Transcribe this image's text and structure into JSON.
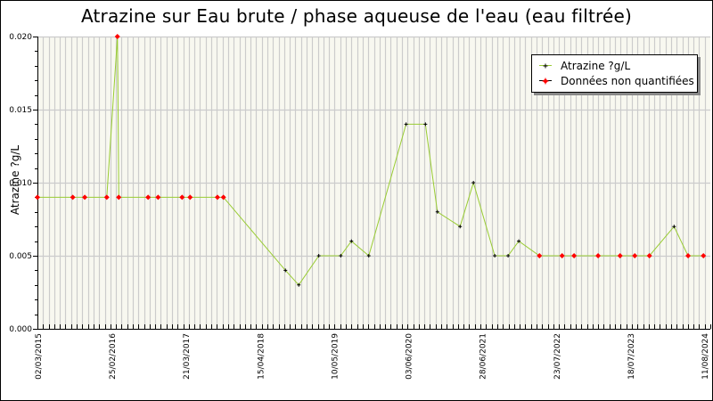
{
  "header": {
    "title": "Atrazine sur Eau brute / phase aqueuse de l'eau (eau filtrée)"
  },
  "colors": {
    "line": "#99cc33",
    "quantified_marker": "#000000",
    "non_quantified_marker": "#ff0000",
    "plot_background": "#f8f8f0",
    "grid": "#cccccc"
  },
  "legend": {
    "items": [
      {
        "label": "Atrazine ?g/L",
        "marker": "black-cross"
      },
      {
        "label": "Données non quantifiées",
        "marker": "red-diamond"
      }
    ]
  },
  "chart_data": {
    "type": "line",
    "title": "Atrazine sur Eau brute / phase aqueuse de l'eau (eau filtrée)",
    "xlabel": "",
    "ylabel": "Atrazine ?g/L",
    "ylim": [
      0.0,
      0.02
    ],
    "yticks": [
      "0.000",
      "0.005",
      "0.010",
      "0.015",
      "0.020"
    ],
    "xticks": [
      "02/03/2015",
      "25/02/2016",
      "21/03/2017",
      "15/04/2018",
      "10/05/2019",
      "03/06/2020",
      "28/06/2021",
      "23/07/2022",
      "18/07/2023",
      "11/08/2024"
    ],
    "grid": true,
    "legend_position": "top-right",
    "series": [
      {
        "name": "Atrazine ?g/L",
        "points": [
          {
            "x_frac": 0.0,
            "y": 0.009,
            "quantified": false
          },
          {
            "x_frac": 0.053,
            "y": 0.009,
            "quantified": false
          },
          {
            "x_frac": 0.071,
            "y": 0.009,
            "quantified": false
          },
          {
            "x_frac": 0.104,
            "y": 0.009,
            "quantified": false
          },
          {
            "x_frac": 0.12,
            "y": 0.02,
            "quantified": false
          },
          {
            "x_frac": 0.122,
            "y": 0.009,
            "quantified": false
          },
          {
            "x_frac": 0.166,
            "y": 0.009,
            "quantified": false
          },
          {
            "x_frac": 0.181,
            "y": 0.009,
            "quantified": false
          },
          {
            "x_frac": 0.217,
            "y": 0.009,
            "quantified": false
          },
          {
            "x_frac": 0.229,
            "y": 0.009,
            "quantified": false
          },
          {
            "x_frac": 0.27,
            "y": 0.009,
            "quantified": false
          },
          {
            "x_frac": 0.279,
            "y": 0.009,
            "quantified": false
          },
          {
            "x_frac": 0.372,
            "y": 0.004,
            "quantified": true
          },
          {
            "x_frac": 0.392,
            "y": 0.003,
            "quantified": true
          },
          {
            "x_frac": 0.422,
            "y": 0.005,
            "quantified": true
          },
          {
            "x_frac": 0.455,
            "y": 0.005,
            "quantified": true
          },
          {
            "x_frac": 0.471,
            "y": 0.006,
            "quantified": true
          },
          {
            "x_frac": 0.497,
            "y": 0.005,
            "quantified": true
          },
          {
            "x_frac": 0.553,
            "y": 0.014,
            "quantified": true
          },
          {
            "x_frac": 0.582,
            "y": 0.014,
            "quantified": true
          },
          {
            "x_frac": 0.6,
            "y": 0.008,
            "quantified": true
          },
          {
            "x_frac": 0.634,
            "y": 0.007,
            "quantified": true
          },
          {
            "x_frac": 0.654,
            "y": 0.01,
            "quantified": true
          },
          {
            "x_frac": 0.686,
            "y": 0.005,
            "quantified": true
          },
          {
            "x_frac": 0.706,
            "y": 0.005,
            "quantified": true
          },
          {
            "x_frac": 0.722,
            "y": 0.006,
            "quantified": true
          },
          {
            "x_frac": 0.753,
            "y": 0.005,
            "quantified": false
          },
          {
            "x_frac": 0.787,
            "y": 0.005,
            "quantified": false
          },
          {
            "x_frac": 0.805,
            "y": 0.005,
            "quantified": false
          },
          {
            "x_frac": 0.841,
            "y": 0.005,
            "quantified": false
          },
          {
            "x_frac": 0.874,
            "y": 0.005,
            "quantified": false
          },
          {
            "x_frac": 0.896,
            "y": 0.005,
            "quantified": false
          },
          {
            "x_frac": 0.918,
            "y": 0.005,
            "quantified": false
          },
          {
            "x_frac": 0.955,
            "y": 0.007,
            "quantified": true
          },
          {
            "x_frac": 0.976,
            "y": 0.005,
            "quantified": false
          },
          {
            "x_frac": 0.999,
            "y": 0.005,
            "quantified": false
          }
        ]
      }
    ]
  }
}
